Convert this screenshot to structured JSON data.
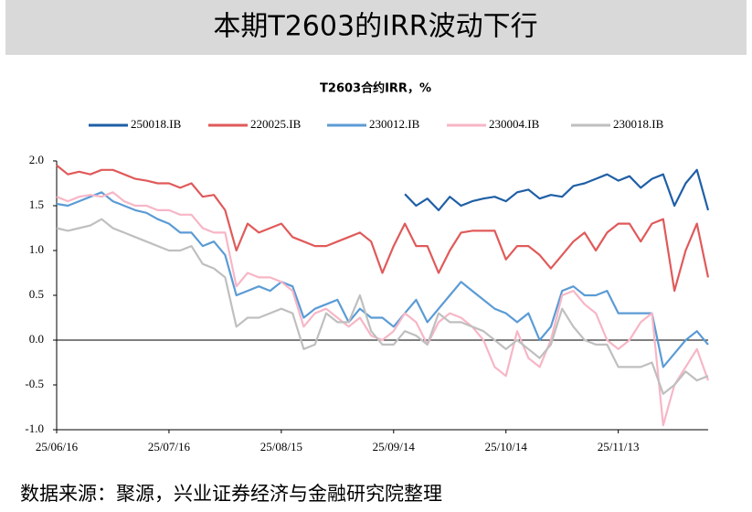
{
  "header": {
    "title": "本期T2603的IRR波动下行"
  },
  "chart_data": {
    "type": "line",
    "title": "T2603合约IRR，%",
    "categories": [
      "25/06/16",
      null,
      null,
      null,
      null,
      null,
      null,
      null,
      null,
      null,
      "25/07/16",
      null,
      null,
      null,
      null,
      null,
      null,
      null,
      null,
      null,
      "25/08/15",
      null,
      null,
      null,
      null,
      null,
      null,
      null,
      null,
      null,
      "25/09/14",
      null,
      null,
      null,
      null,
      null,
      null,
      null,
      null,
      null,
      "25/10/14",
      null,
      null,
      null,
      null,
      null,
      null,
      null,
      null,
      null,
      "25/11/13",
      null,
      null,
      null,
      null,
      null,
      null,
      null,
      null
    ],
    "series": [
      {
        "name": "250018.IB",
        "color": "#1f5fa6",
        "values": [
          null,
          null,
          null,
          null,
          null,
          null,
          null,
          null,
          null,
          null,
          null,
          null,
          null,
          null,
          null,
          null,
          null,
          null,
          null,
          null,
          null,
          null,
          null,
          null,
          null,
          null,
          null,
          null,
          null,
          null,
          null,
          1.63,
          1.5,
          1.58,
          1.45,
          1.6,
          1.5,
          1.55,
          1.58,
          1.6,
          1.55,
          1.65,
          1.68,
          1.58,
          1.62,
          1.6,
          1.72,
          1.75,
          1.8,
          1.85,
          1.78,
          1.83,
          1.7,
          1.8,
          1.85,
          1.5,
          1.75,
          1.9,
          1.45
        ]
      },
      {
        "name": "220025.IB",
        "color": "#e05a5a",
        "values": [
          1.95,
          1.85,
          1.88,
          1.85,
          1.9,
          1.9,
          1.85,
          1.8,
          1.78,
          1.75,
          1.75,
          1.7,
          1.75,
          1.6,
          1.62,
          1.45,
          1.0,
          1.3,
          1.2,
          1.25,
          1.3,
          1.15,
          1.1,
          1.05,
          1.05,
          1.1,
          1.15,
          1.2,
          1.1,
          0.75,
          1.05,
          1.3,
          1.05,
          1.05,
          0.75,
          1.0,
          1.2,
          1.22,
          1.22,
          1.22,
          0.9,
          1.05,
          1.05,
          0.95,
          0.8,
          0.95,
          1.1,
          1.2,
          1.0,
          1.2,
          1.3,
          1.3,
          1.1,
          1.3,
          1.35,
          0.55,
          1.0,
          1.3,
          0.7
        ]
      },
      {
        "name": "230012.IB",
        "color": "#5b9bd5",
        "values": [
          1.52,
          1.5,
          1.55,
          1.6,
          1.65,
          1.55,
          1.5,
          1.45,
          1.42,
          1.35,
          1.3,
          1.2,
          1.2,
          1.05,
          1.1,
          0.95,
          0.5,
          0.55,
          0.6,
          0.55,
          0.65,
          0.6,
          0.25,
          0.35,
          0.4,
          0.45,
          0.2,
          0.35,
          0.25,
          0.25,
          0.15,
          0.3,
          0.45,
          0.2,
          0.35,
          0.5,
          0.65,
          0.55,
          0.45,
          0.35,
          0.3,
          0.2,
          0.3,
          0.0,
          0.15,
          0.55,
          0.6,
          0.5,
          0.5,
          0.55,
          0.3,
          0.3,
          0.3,
          0.3,
          -0.3,
          -0.15,
          0.0,
          0.1,
          -0.05
        ]
      },
      {
        "name": "230004.IB",
        "color": "#f7b6c6",
        "values": [
          1.6,
          1.55,
          1.6,
          1.62,
          1.6,
          1.65,
          1.55,
          1.5,
          1.5,
          1.45,
          1.45,
          1.4,
          1.4,
          1.25,
          1.2,
          1.2,
          0.6,
          0.75,
          0.7,
          0.7,
          0.65,
          0.55,
          0.15,
          0.3,
          0.35,
          0.25,
          0.15,
          0.25,
          0.05,
          0.0,
          0.1,
          0.3,
          0.2,
          -0.05,
          0.2,
          0.3,
          0.25,
          0.15,
          0.0,
          -0.3,
          -0.4,
          0.1,
          -0.2,
          -0.3,
          0.0,
          0.5,
          0.55,
          0.4,
          0.3,
          0.0,
          -0.1,
          0.0,
          0.2,
          0.3,
          -0.95,
          -0.5,
          -0.3,
          -0.1,
          -0.45
        ]
      },
      {
        "name": "230018.IB",
        "color": "#bfbfbf",
        "values": [
          1.25,
          1.22,
          1.25,
          1.28,
          1.35,
          1.25,
          1.2,
          1.15,
          1.1,
          1.05,
          1.0,
          1.0,
          1.05,
          0.85,
          0.8,
          0.7,
          0.15,
          0.25,
          0.25,
          0.3,
          0.35,
          0.3,
          -0.1,
          -0.05,
          0.3,
          0.2,
          0.2,
          0.5,
          0.1,
          -0.05,
          -0.05,
          0.1,
          0.05,
          -0.05,
          0.3,
          0.2,
          0.2,
          0.15,
          0.1,
          0.0,
          -0.1,
          0.0,
          -0.1,
          -0.2,
          -0.05,
          0.35,
          0.15,
          0.0,
          -0.05,
          -0.05,
          -0.3,
          -0.3,
          -0.3,
          -0.25,
          -0.6,
          -0.5,
          -0.35,
          -0.45,
          -0.4
        ]
      }
    ],
    "ylim": [
      -1,
      2
    ],
    "yticks": [
      {
        "value": 2,
        "label": "2.0"
      },
      1.5,
      {
        "value": 1,
        "label": "1.0"
      },
      0.5,
      {
        "value": 0,
        "label": "0.0"
      },
      -0.5,
      {
        "value": -1,
        "label": "-1.0"
      }
    ],
    "legend": "top"
  },
  "footer": {
    "source": "数据来源：聚源，兴业证券经济与金融研究院整理"
  }
}
